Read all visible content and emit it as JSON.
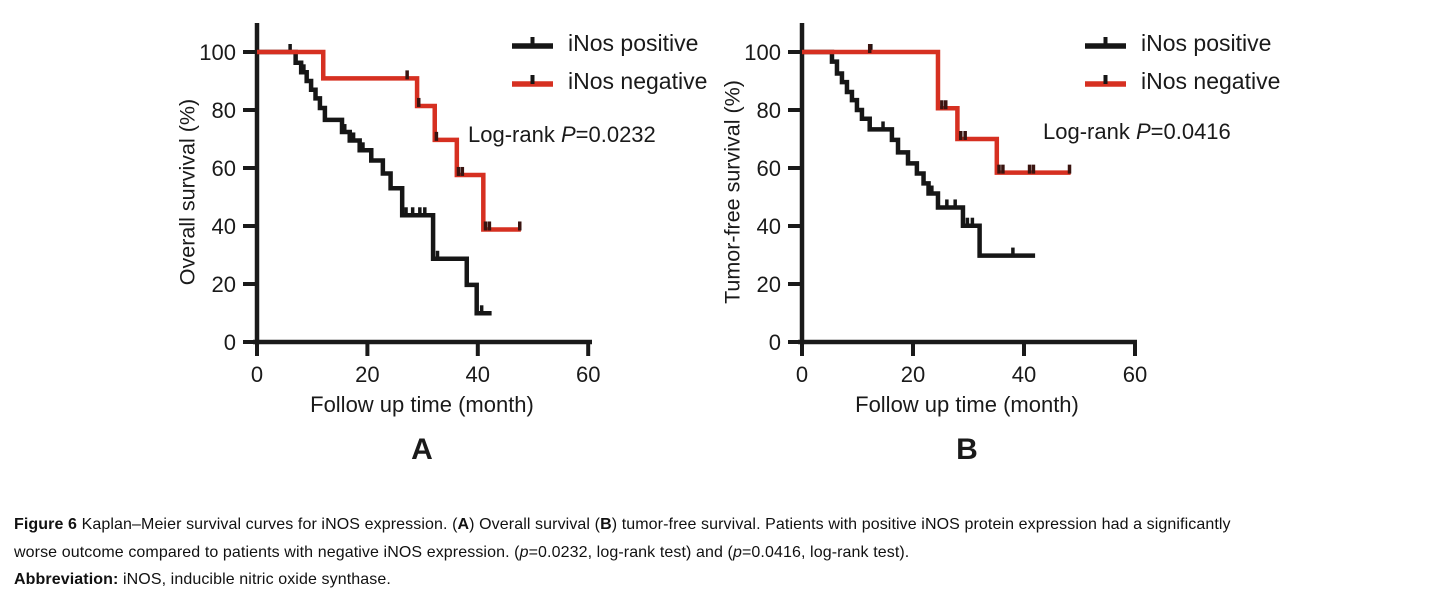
{
  "figure": {
    "background": "#ffffff",
    "axis_color": "#1a1a1a",
    "panels": [
      {
        "letter": "A",
        "ylabel": "Overall survival (%)",
        "xlabel": "Follow up time (month)",
        "logrank": [
          {
            "text": "Log-rank ",
            "italic": false
          },
          {
            "text": "P",
            "italic": true
          },
          {
            "text": "=0.0232",
            "italic": false
          }
        ]
      },
      {
        "letter": "B",
        "ylabel": "Tumor-free survival (%)",
        "xlabel": "Follow up time (month)",
        "logrank": [
          {
            "text": "Log-rank ",
            "italic": false
          },
          {
            "text": "P",
            "italic": true
          },
          {
            "text": "=0.0416",
            "italic": false
          }
        ]
      }
    ],
    "legend": {
      "items": [
        {
          "label": "iNos positive",
          "color": "#161616"
        },
        {
          "label": "iNos negative",
          "color": "#d63021"
        }
      ]
    }
  },
  "chart_data": [
    {
      "type": "line",
      "subtype": "kaplan_meier_step",
      "panel": "A",
      "title": "Overall survival",
      "xlabel": "Follow up time (month)",
      "ylabel": "Overall survival (%)",
      "xlim": [
        0,
        60
      ],
      "ylim": [
        0,
        100
      ],
      "xticks": [
        0,
        20,
        40,
        60
      ],
      "yticks": [
        100,
        80,
        60,
        40,
        20,
        0
      ],
      "annotation": "Log-rank P=0.0232",
      "legend_position": "top-right",
      "grid": false,
      "series": [
        {
          "name": "iNos positive",
          "color": "#161616",
          "start_pct": 100,
          "drops": [
            [
              7,
              96.3
            ],
            [
              8,
              93
            ],
            [
              9,
              90
            ],
            [
              9.8,
              87
            ],
            [
              10.6,
              84
            ],
            [
              11.4,
              80.7
            ],
            [
              12.3,
              76.6
            ],
            [
              15.4,
              72.4
            ],
            [
              16.8,
              69.5
            ],
            [
              18.6,
              66.1
            ],
            [
              20.7,
              62.6
            ],
            [
              22.8,
              58.1
            ],
            [
              24.2,
              53
            ],
            [
              26.3,
              43.7
            ],
            [
              31.9,
              28.7
            ],
            [
              38,
              19.7
            ],
            [
              39.8,
              9.9
            ]
          ],
          "end_month": 42.5,
          "censors": [
            [
              6,
              100
            ],
            [
              8.5,
              93
            ],
            [
              15.9,
              72.4
            ],
            [
              17.5,
              69.5
            ],
            [
              19.2,
              66.1
            ],
            [
              27,
              43.7
            ],
            [
              28.2,
              43.7
            ],
            [
              29.5,
              43.7
            ],
            [
              30.4,
              43.7
            ],
            [
              32.7,
              28.7
            ],
            [
              40.7,
              9.9
            ]
          ]
        },
        {
          "name": "iNos negative",
          "color": "#d63021",
          "start_pct": 100,
          "drops": [
            [
              12,
              90.9
            ],
            [
              29,
              81.4
            ],
            [
              32.2,
              69.7
            ],
            [
              36.2,
              57.6
            ],
            [
              41,
              38.8
            ]
          ],
          "end_month": 47.8,
          "censors": [
            [
              27.2,
              90.9
            ],
            [
              29.3,
              81.4
            ],
            [
              32.5,
              69.7
            ],
            [
              36.5,
              57.6
            ],
            [
              37.2,
              57.6
            ],
            [
              41.4,
              38.8
            ],
            [
              42.1,
              38.8
            ],
            [
              47.6,
              38.8
            ]
          ]
        }
      ]
    },
    {
      "type": "line",
      "subtype": "kaplan_meier_step",
      "panel": "B",
      "title": "Tumor-free survival",
      "xlabel": "Follow up time (month)",
      "ylabel": "Tumor-free survival (%)",
      "xlim": [
        0,
        60
      ],
      "ylim": [
        0,
        100
      ],
      "xticks": [
        0,
        20,
        40,
        60
      ],
      "yticks": [
        100,
        80,
        60,
        40,
        20,
        0
      ],
      "annotation": "Log-rank P=0.0416",
      "legend_position": "top-right",
      "grid": false,
      "series": [
        {
          "name": "iNos positive",
          "color": "#161616",
          "start_pct": 100,
          "drops": [
            [
              5.4,
              96.7
            ],
            [
              6.3,
              92.6
            ],
            [
              7.2,
              89.6
            ],
            [
              8.1,
              86.2
            ],
            [
              9,
              83.4
            ],
            [
              9.9,
              80
            ],
            [
              10.8,
              77
            ],
            [
              12.2,
              73.3
            ],
            [
              16.2,
              69.7
            ],
            [
              17.3,
              65.4
            ],
            [
              19.1,
              61.6
            ],
            [
              20.7,
              58.1
            ],
            [
              21.9,
              54.7
            ],
            [
              22.8,
              51.2
            ],
            [
              24.5,
              46.4
            ],
            [
              29,
              40.1
            ],
            [
              32,
              29.8
            ]
          ],
          "end_month": 42,
          "censors": [
            [
              12.4,
              100
            ],
            [
              14.6,
              73.3
            ],
            [
              23.4,
              51.2
            ],
            [
              26.1,
              46.4
            ],
            [
              27.6,
              46.4
            ],
            [
              29.8,
              40.1
            ],
            [
              30.7,
              40.1
            ],
            [
              38,
              29.8
            ]
          ]
        },
        {
          "name": "iNos negative",
          "color": "#d63021",
          "start_pct": 100,
          "drops": [
            [
              24.5,
              80.6
            ],
            [
              28,
              70
            ],
            [
              35.1,
              58.4
            ]
          ],
          "end_month": 48.4,
          "censors": [
            [
              12.2,
              100
            ],
            [
              25.2,
              80.6
            ],
            [
              25.9,
              80.6
            ],
            [
              28.6,
              70
            ],
            [
              29.4,
              70
            ],
            [
              35.5,
              58.4
            ],
            [
              36.2,
              58.4
            ],
            [
              41,
              58.4
            ],
            [
              41.7,
              58.4
            ],
            [
              48.2,
              58.4
            ]
          ]
        }
      ]
    }
  ],
  "caption": {
    "lines": [
      [
        {
          "text": "Figure 6",
          "bold": true
        },
        {
          "text": " Kaplan–Meier survival curves for iNOS expression. ("
        },
        {
          "text": "A",
          "bold": true
        },
        {
          "text": ") Overall survival ("
        },
        {
          "text": "B",
          "bold": true
        },
        {
          "text": ") tumor-free survival. Patients with positive iNOS protein expression had a significantly"
        }
      ],
      [
        {
          "text": "worse outcome compared to patients with negative iNOS expression. ("
        },
        {
          "text": "p",
          "italic": true
        },
        {
          "text": "=0.0232, log-rank test) and ("
        },
        {
          "text": "p",
          "italic": true
        },
        {
          "text": "=0.0416, log-rank test)."
        }
      ],
      [
        {
          "text": "Abbreviation:",
          "bold": true
        },
        {
          "text": " iNOS, inducible nitric oxide synthase."
        }
      ]
    ]
  }
}
